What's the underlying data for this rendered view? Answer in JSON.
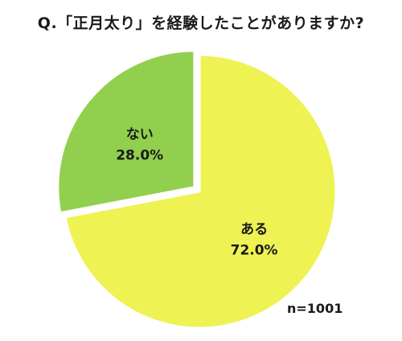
{
  "chart_data": {
    "type": "pie",
    "title": "Q.「正月太り」を経験したことがありますか?",
    "categories": [
      "ある",
      "ない"
    ],
    "values": [
      72.0,
      28.0
    ],
    "value_labels": [
      "72.0%",
      "28.0%"
    ],
    "colors": [
      "#eef253",
      "#92cf4e"
    ],
    "exploded": [
      "ない"
    ],
    "note": "n=1001",
    "legend": "none"
  }
}
